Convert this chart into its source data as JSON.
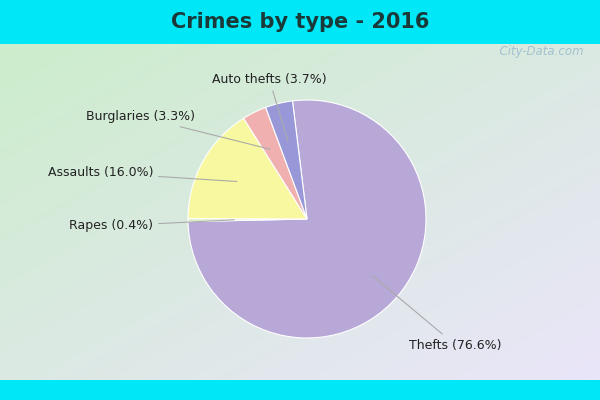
{
  "title": "Crimes by type - 2016",
  "slices": [
    {
      "label": "Thefts",
      "pct": 76.6,
      "color": "#b8a8d8"
    },
    {
      "label": "Rapes",
      "pct": 0.4,
      "color": "#d8ecc0"
    },
    {
      "label": "Assaults",
      "pct": 16.0,
      "color": "#f8f8a0"
    },
    {
      "label": "Burglaries",
      "pct": 3.3,
      "color": "#f0b0b0"
    },
    {
      "label": "Auto thefts",
      "pct": 3.7,
      "color": "#9898d8"
    }
  ],
  "cyan_bar_height": 0.115,
  "cyan_color": "#00e8f8",
  "bg_left_color": "#c8ecc8",
  "bg_right_color": "#ddeef8",
  "title_fontsize": 15,
  "label_fontsize": 9,
  "watermark": "  City-Data.com",
  "startangle": 97,
  "counterclock": false
}
